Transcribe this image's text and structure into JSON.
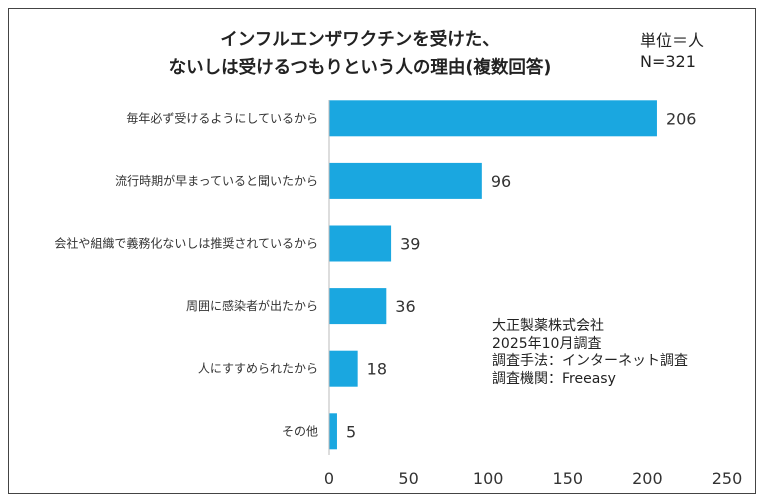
{
  "chart_data": {
    "type": "bar",
    "orientation": "horizontal",
    "title_lines": [
      "インフルエンザワクチンを受けた、",
      "ないしは受けるつもりという人の理由(複数回答)"
    ],
    "unit": "単位＝人",
    "n_label": "N=321",
    "categories": [
      "毎年必ず受けるようにしているから",
      "流行時期が早まっていると聞いたから",
      "会社や組織で義務化ないしは推奨されているから",
      "周囲に感染者が出たから",
      "人にすすめられたから",
      "その他"
    ],
    "values": [
      206,
      96,
      39,
      36,
      18,
      5
    ],
    "xlim": [
      0,
      250
    ],
    "xticks": [
      0,
      50,
      100,
      150,
      200,
      250
    ],
    "grid": false,
    "bar_color": "#1aa7e0",
    "xlabel": "",
    "ylabel": ""
  },
  "note": [
    "大正製薬株式会社",
    "2025年10月調査",
    "調査手法：インターネット調査",
    "調査機関：Freeasy"
  ]
}
